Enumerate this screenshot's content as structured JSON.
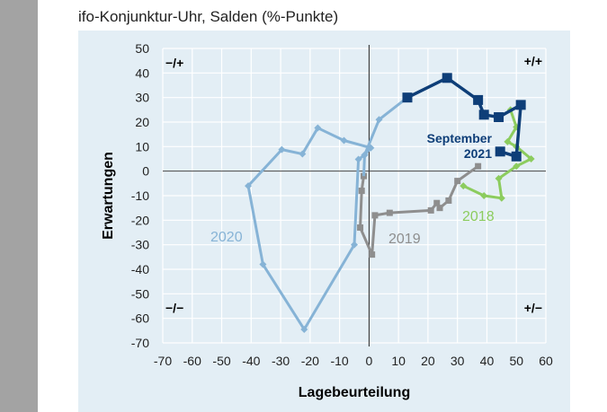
{
  "title": "ifo-Konjunktur-Uhr, Salden (%-Punkte)",
  "chart_data": {
    "type": "line",
    "title": "ifo-Konjunktur-Uhr, Salden (%-Punkte)",
    "xlabel": "Lagebeurteilung",
    "ylabel": "Erwartungen",
    "xlim": [
      -70,
      60
    ],
    "ylim": [
      -70,
      50
    ],
    "xticks": [
      -70,
      -60,
      -50,
      -40,
      -30,
      -20,
      -10,
      0,
      10,
      20,
      30,
      40,
      50,
      60
    ],
    "yticks": [
      50,
      40,
      30,
      20,
      10,
      0,
      -10,
      -20,
      -30,
      -40,
      -50,
      -60,
      -70
    ],
    "grid": true,
    "quadrants": {
      "top_left": "−/+",
      "top_right": "+/+",
      "bottom_left": "−/−",
      "bottom_right": "+/−"
    },
    "series": [
      {
        "name": "2018",
        "color": "#8ccc5e",
        "marker": "diamond",
        "points": [
          [
            48,
            25
          ],
          [
            50,
            18
          ],
          [
            47,
            12
          ],
          [
            50,
            10
          ],
          [
            55,
            5
          ],
          [
            50,
            2
          ],
          [
            44,
            -3
          ],
          [
            45,
            -11
          ],
          [
            39,
            -10
          ],
          [
            32,
            -6
          ]
        ]
      },
      {
        "name": "2019",
        "color": "#8e8e8e",
        "marker": "square",
        "points": [
          [
            37,
            2
          ],
          [
            30,
            -4
          ],
          [
            27,
            -12
          ],
          [
            24,
            -15
          ],
          [
            23,
            -13
          ],
          [
            21,
            -16
          ],
          [
            7,
            -17
          ],
          [
            2,
            -18
          ],
          [
            1,
            -34
          ],
          [
            -3,
            -23
          ],
          [
            -2.5,
            -8
          ],
          [
            -1.8,
            -2
          ]
        ]
      },
      {
        "name": "2020",
        "color": "#86b3d6",
        "marker": "diamond",
        "points": [
          [
            -1.5,
            6.6
          ],
          [
            0.6,
            9.5
          ],
          [
            -8.5,
            12.5
          ],
          [
            -17.4,
            17.6
          ],
          [
            -22.6,
            7
          ],
          [
            -29.6,
            8.8
          ],
          [
            -41,
            -6
          ],
          [
            -36,
            -38
          ],
          [
            -22,
            -64.5
          ],
          [
            -5,
            -30
          ],
          [
            -3.6,
            4.8
          ],
          [
            -1.5,
            6.6
          ],
          [
            3.4,
            21
          ]
        ]
      },
      {
        "name": "September 2021",
        "color": "#0e3e78",
        "marker": "square",
        "points": [
          [
            13,
            30
          ],
          [
            26.5,
            38
          ],
          [
            37,
            29
          ],
          [
            39,
            23
          ],
          [
            44,
            22
          ],
          [
            51.5,
            27
          ],
          [
            50,
            6
          ],
          [
            44.5,
            8
          ]
        ]
      }
    ],
    "labels": {
      "s2018": "2018",
      "s2019": "2019",
      "s2020": "2020",
      "sep1": "September",
      "sep2": "2021"
    }
  }
}
